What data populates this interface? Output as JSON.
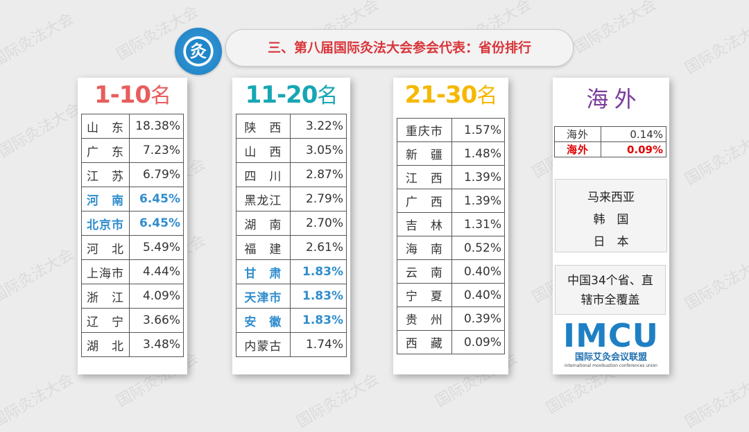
{
  "header": {
    "logo_text": "灸",
    "title": "三、第八届国际灸法大会参会代表：省份排行"
  },
  "watermark": "国际灸法大会",
  "colors": {
    "rank1": "#e85d5d",
    "rank2": "#17a6b3",
    "rank3": "#f5b800",
    "overseas": "#7a3c9a",
    "highlight_blue": "#2f8dcd",
    "highlight_red": "#e00000"
  },
  "groups": [
    {
      "range": "1-10",
      "unit": "名",
      "rows": [
        {
          "name": "山　东",
          "pct": "18.38%"
        },
        {
          "name": "广　东",
          "pct": "7.23%"
        },
        {
          "name": "江　苏",
          "pct": "6.79%"
        },
        {
          "name": "河　南",
          "pct": "6.45%",
          "hl": true
        },
        {
          "name": "北京市",
          "pct": "6.45%",
          "hl": true
        },
        {
          "name": "河　北",
          "pct": "5.49%"
        },
        {
          "name": "上海市",
          "pct": "4.44%"
        },
        {
          "name": "浙　江",
          "pct": "4.09%"
        },
        {
          "name": "辽　宁",
          "pct": "3.66%"
        },
        {
          "name": "湖　北",
          "pct": "3.48%"
        }
      ]
    },
    {
      "range": "11-20",
      "unit": "名",
      "rows": [
        {
          "name": "陕　西",
          "pct": "3.22%"
        },
        {
          "name": "山　西",
          "pct": "3.05%"
        },
        {
          "name": "四　川",
          "pct": "2.87%"
        },
        {
          "name": "黑龙江",
          "pct": "2.79%"
        },
        {
          "name": "湖　南",
          "pct": "2.70%"
        },
        {
          "name": "福　建",
          "pct": "2.61%"
        },
        {
          "name": "甘　肃",
          "pct": "1.83%",
          "hl": true
        },
        {
          "name": "天津市",
          "pct": "1.83%",
          "hl": true
        },
        {
          "name": "安　徽",
          "pct": "1.83%",
          "hl": true
        },
        {
          "name": "内蒙古",
          "pct": "1.74%"
        }
      ]
    },
    {
      "range": "21-30",
      "unit": "名",
      "rows": [
        {
          "name": "重庆市",
          "pct": "1.57%"
        },
        {
          "name": "新　疆",
          "pct": "1.48%"
        },
        {
          "name": "江　西",
          "pct": "1.39%"
        },
        {
          "name": "广　西",
          "pct": "1.39%"
        },
        {
          "name": "吉　林",
          "pct": "1.31%"
        },
        {
          "name": "海　南",
          "pct": "0.52%"
        },
        {
          "name": "云　南",
          "pct": "0.40%"
        },
        {
          "name": "宁　夏",
          "pct": "0.40%"
        },
        {
          "name": "贵　州",
          "pct": "0.39%"
        },
        {
          "name": "西　藏",
          "pct": "0.09%"
        }
      ]
    }
  ],
  "overseas": {
    "title": "海 外",
    "rows": [
      {
        "name": "海外",
        "pct": "0.14%"
      },
      {
        "name": "海外",
        "pct": "0.09%",
        "hl": true
      }
    ],
    "countries": [
      "马来西亚",
      "韩　国",
      "日　本"
    ],
    "coverage_line1": "中国34个省、直",
    "coverage_line2": "辖市全覆盖",
    "imcu_logo": "IMCU",
    "imcu_cn": "国际艾灸会议联盟",
    "imcu_en": "international moxibustion conferences union"
  }
}
